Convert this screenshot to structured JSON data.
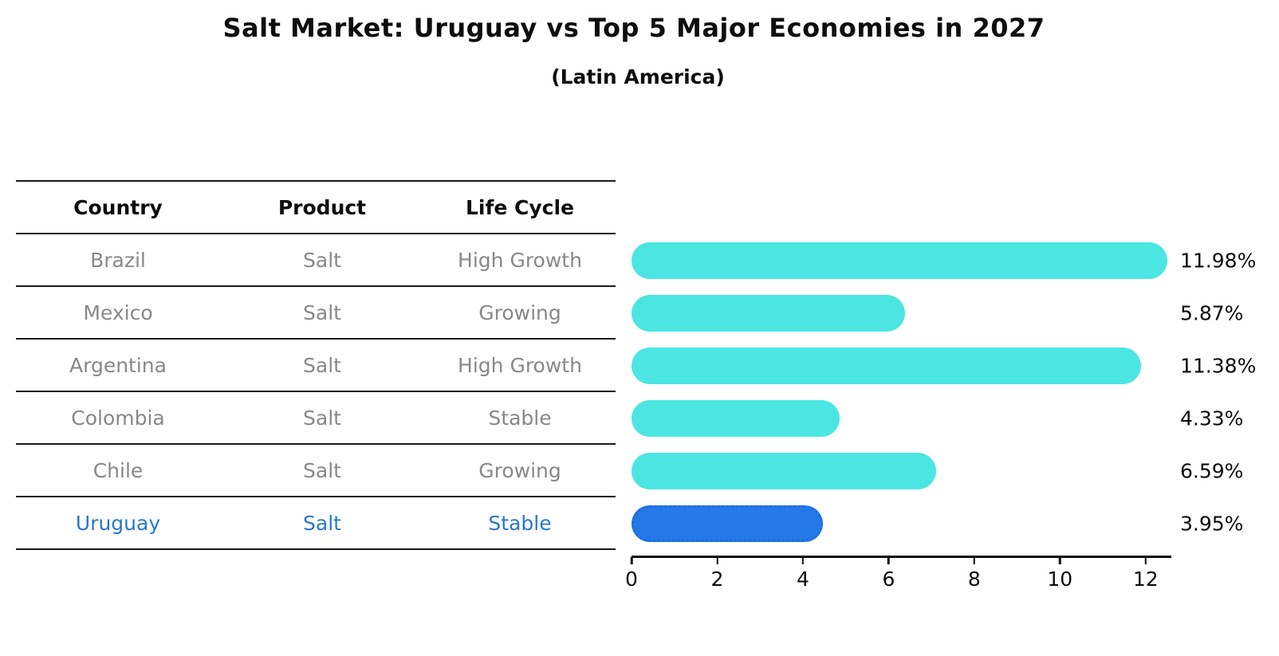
{
  "title": "Salt Market: Uruguay vs Top 5 Major Economies in 2027",
  "subtitle": "(Latin America)",
  "table": {
    "headers": [
      "Country",
      "Product",
      "Life Cycle"
    ],
    "rows": [
      {
        "country": "Brazil",
        "product": "Salt",
        "life_cycle": "High Growth",
        "highlight": false
      },
      {
        "country": "Mexico",
        "product": "Salt",
        "life_cycle": "Growing",
        "highlight": false
      },
      {
        "country": "Argentina",
        "product": "Salt",
        "life_cycle": "High Growth",
        "highlight": false
      },
      {
        "country": "Colombia",
        "product": "Salt",
        "life_cycle": "Stable",
        "highlight": false
      },
      {
        "country": "Chile",
        "product": "Salt",
        "life_cycle": "Growing",
        "highlight": false
      },
      {
        "country": "Uruguay",
        "product": "Salt",
        "life_cycle": "Stable",
        "highlight": true
      }
    ]
  },
  "chart_data": {
    "type": "bar",
    "orientation": "horizontal",
    "title": "Salt Market: Uruguay vs Top 5 Major Economies in 2027",
    "subtitle": "(Latin America)",
    "categories": [
      "Brazil",
      "Mexico",
      "Argentina",
      "Colombia",
      "Chile",
      "Uruguay"
    ],
    "values": [
      11.98,
      5.87,
      11.38,
      4.33,
      6.59,
      3.95
    ],
    "value_labels": [
      "11.98%",
      "5.87%",
      "11.38%",
      "4.33%",
      "6.59%",
      "3.95%"
    ],
    "highlight_category": "Uruguay",
    "xlabel": "",
    "ylabel": "",
    "xlim": [
      0,
      12.6
    ],
    "xticks": [
      0,
      2,
      4,
      6,
      8,
      10,
      12
    ],
    "grid": false,
    "legend": false,
    "colors": {
      "bar": "#4be6e2",
      "highlight_bar": "#2478e8",
      "highlight_text": "#2878c8",
      "table_text": "#888888",
      "header_text": "#0d0d0d"
    }
  }
}
